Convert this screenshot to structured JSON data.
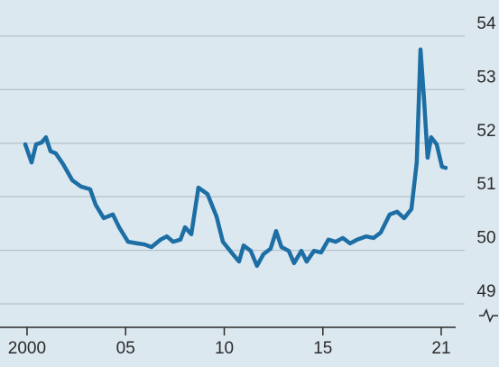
{
  "chart_data": {
    "type": "line",
    "x": [
      1999.91,
      2000.23,
      2000.46,
      2000.73,
      2000.96,
      2001.19,
      2001.46,
      2001.83,
      2002.29,
      2002.74,
      2003.2,
      2003.48,
      2003.89,
      2004.35,
      2004.67,
      2005.12,
      2005.58,
      2005.95,
      2006.31,
      2006.77,
      2007.09,
      2007.41,
      2007.78,
      2008.01,
      2008.33,
      2008.69,
      2009.15,
      2009.61,
      2009.93,
      2010.43,
      2010.75,
      2010.98,
      2011.34,
      2011.66,
      2011.99,
      2012.35,
      2012.63,
      2012.9,
      2013.27,
      2013.54,
      2013.91,
      2014.18,
      2014.55,
      2014.91,
      2015.28,
      2015.65,
      2016.01,
      2016.38,
      2016.74,
      2017.2,
      2017.57,
      2017.93,
      2018.39,
      2018.76,
      2019.12,
      2019.49,
      2019.76,
      2019.95,
      2020.13,
      2020.31,
      2020.49,
      2020.77,
      2021.04,
      2021.23
    ],
    "series": [
      {
        "color": "#1c6ea4",
        "values": [
          51.98,
          51.64,
          51.98,
          52.01,
          52.11,
          51.85,
          51.81,
          51.61,
          51.31,
          51.19,
          51.14,
          50.85,
          50.6,
          50.67,
          50.43,
          50.16,
          50.13,
          50.11,
          50.06,
          50.2,
          50.26,
          50.16,
          50.2,
          50.43,
          50.3,
          51.17,
          51.05,
          50.63,
          50.16,
          49.93,
          49.79,
          50.09,
          49.99,
          49.71,
          49.93,
          50.03,
          50.36,
          50.06,
          49.99,
          49.76,
          49.99,
          49.79,
          49.99,
          49.96,
          50.2,
          50.16,
          50.23,
          50.13,
          50.2,
          50.26,
          50.23,
          50.33,
          50.67,
          50.72,
          50.6,
          50.77,
          51.64,
          53.75,
          52.82,
          51.73,
          52.11,
          51.98,
          51.56,
          51.54
        ]
      }
    ],
    "xlim": [
      1998.63,
      2023.93
    ],
    "xticks": [
      {
        "value": 2000,
        "label": "2000"
      },
      {
        "value": 2005,
        "label": "05"
      },
      {
        "value": 2010,
        "label": "10"
      },
      {
        "value": 2015,
        "label": "15"
      },
      {
        "value": 2021,
        "label": "21"
      }
    ],
    "ylim": [
      49,
      54
    ],
    "yticks": [
      49,
      50,
      51,
      52,
      53,
      54
    ],
    "grid": true
  }
}
